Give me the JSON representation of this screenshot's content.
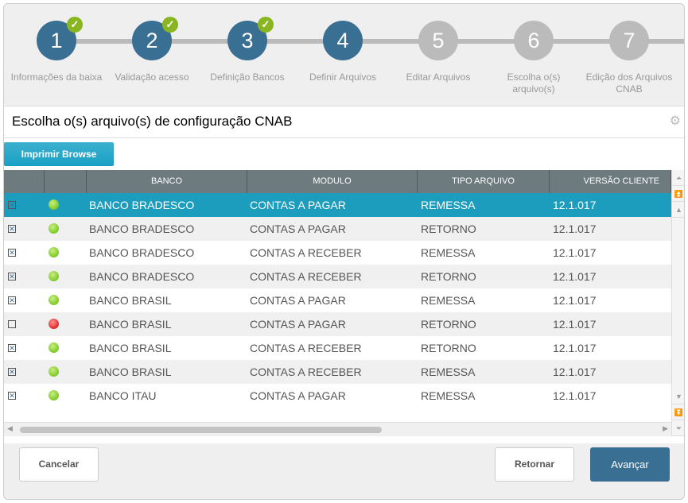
{
  "stepper": {
    "steps": [
      {
        "number": "1",
        "label": "Informações da baixa",
        "state": "done"
      },
      {
        "number": "2",
        "label": "Validação acesso",
        "state": "done"
      },
      {
        "number": "3",
        "label": "Definição Bancos",
        "state": "done"
      },
      {
        "number": "4",
        "label": "Definir Arquivos",
        "state": "current"
      },
      {
        "number": "5",
        "label": "Editar Arquivos",
        "state": "pending"
      },
      {
        "number": "6",
        "label": "Escolha o(s) arquivo(s)",
        "state": "pending"
      },
      {
        "number": "7",
        "label": "Edição dos Arquivos CNAB",
        "state": "pending"
      }
    ],
    "colors": {
      "active": "#3a6f94",
      "pending": "#bbbbbb",
      "check": "#8ab522"
    }
  },
  "panel": {
    "title": "Escolha o(s) arquivo(s) de configuração CNAB",
    "print_button": "Imprimir Browse"
  },
  "table": {
    "columns": [
      "",
      "",
      "BANCO",
      "MODULO",
      "TIPO ARQUIVO",
      "VERSÃO CLIENTE"
    ],
    "rows": [
      {
        "checked": true,
        "status": "green",
        "banco": "BANCO BRADESCO",
        "modulo": "CONTAS A PAGAR",
        "tipo": "REMESSA",
        "versao": "12.1.017",
        "selected": true
      },
      {
        "checked": true,
        "status": "green",
        "banco": "BANCO BRADESCO",
        "modulo": "CONTAS A PAGAR",
        "tipo": "RETORNO",
        "versao": "12.1.017"
      },
      {
        "checked": true,
        "status": "green",
        "banco": "BANCO BRADESCO",
        "modulo": "CONTAS A RECEBER",
        "tipo": "REMESSA",
        "versao": "12.1.017"
      },
      {
        "checked": true,
        "status": "green",
        "banco": "BANCO BRADESCO",
        "modulo": "CONTAS A RECEBER",
        "tipo": "RETORNO",
        "versao": "12.1.017"
      },
      {
        "checked": true,
        "status": "green",
        "banco": "BANCO BRASIL",
        "modulo": "CONTAS A PAGAR",
        "tipo": "REMESSA",
        "versao": "12.1.017"
      },
      {
        "checked": false,
        "status": "red",
        "banco": "BANCO BRASIL",
        "modulo": "CONTAS A PAGAR",
        "tipo": "RETORNO",
        "versao": "12.1.017"
      },
      {
        "checked": true,
        "status": "green",
        "banco": "BANCO BRASIL",
        "modulo": "CONTAS A RECEBER",
        "tipo": "RETORNO",
        "versao": "12.1.017"
      },
      {
        "checked": true,
        "status": "green",
        "banco": "BANCO BRASIL",
        "modulo": "CONTAS A RECEBER",
        "tipo": "REMESSA",
        "versao": "12.1.017"
      },
      {
        "checked": true,
        "status": "green",
        "banco": "BANCO ITAU",
        "modulo": "CONTAS A PAGAR",
        "tipo": "REMESSA",
        "versao": "12.1.017"
      }
    ]
  },
  "footer": {
    "cancel": "Cancelar",
    "back": "Retornar",
    "next": "Avançar"
  }
}
